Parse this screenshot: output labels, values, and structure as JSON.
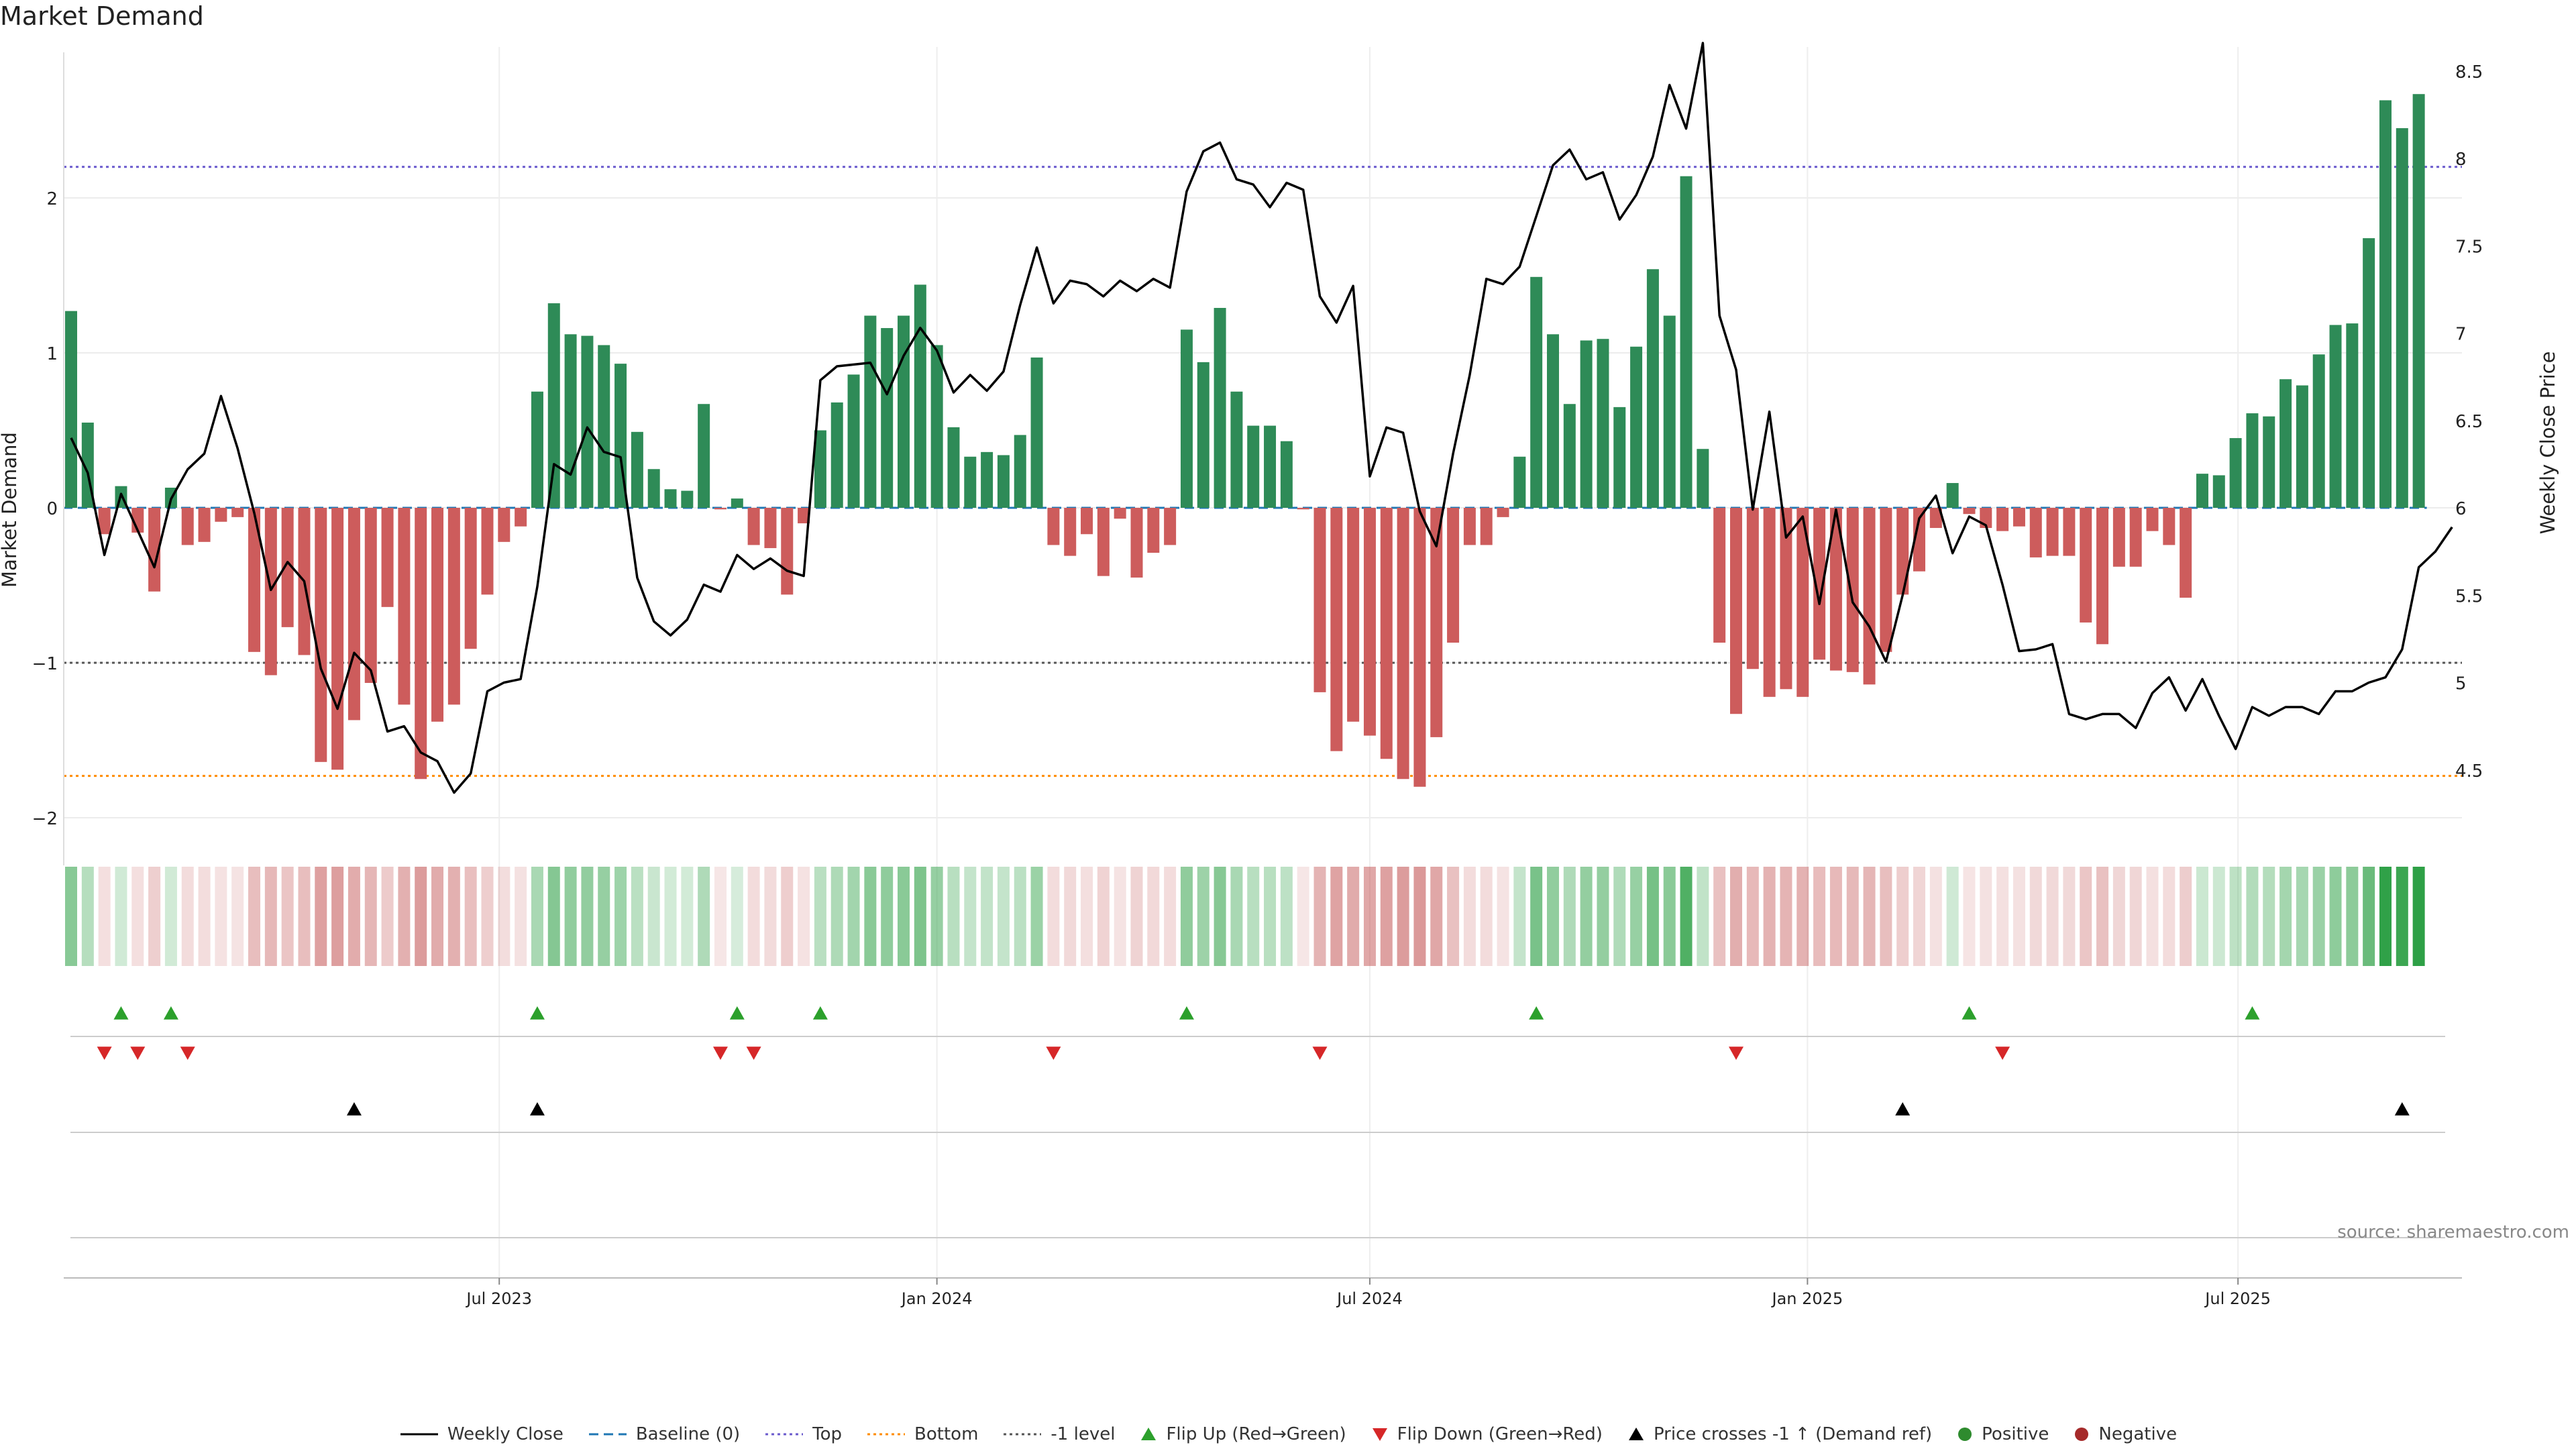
{
  "title": "Market Demand",
  "source": "source: sharemaestro.com",
  "colors": {
    "positive": "#2e8b57",
    "negative": "#cd5c5c",
    "price": "#000000",
    "baseline": "#1f77b4",
    "top": "#6a5acd",
    "bottom": "#ff8c00",
    "minus1": "#555555",
    "flip_up": "#2ca02c",
    "flip_down": "#d62728",
    "cross": "#000000",
    "dot_positive": "#2e8b2e",
    "dot_negative": "#a52a2a"
  },
  "legend": [
    {
      "label": "Weekly Close",
      "type": "line",
      "color": "#000000",
      "dash": ""
    },
    {
      "label": "Baseline (0)",
      "type": "line",
      "color": "#1f77b4",
      "dash": "14,8"
    },
    {
      "label": "Top",
      "type": "line",
      "color": "#6a5acd",
      "dash": "4,5"
    },
    {
      "label": "Bottom",
      "type": "line",
      "color": "#ff8c00",
      "dash": "4,5"
    },
    {
      "label": "-1 level",
      "type": "line",
      "color": "#555555",
      "dash": "4,5"
    },
    {
      "label": "Flip Up (Red→Green)",
      "type": "tri-up",
      "color": "#2ca02c"
    },
    {
      "label": "Flip Down (Green→Red)",
      "type": "tri-down",
      "color": "#d62728"
    },
    {
      "label": "Price crosses -1 ↑ (Demand ref)",
      "type": "tri-up",
      "color": "#000000"
    },
    {
      "label": "Positive",
      "type": "dot",
      "color": "#2e8b2e"
    },
    {
      "label": "Negative",
      "type": "dot",
      "color": "#a52a2a"
    }
  ],
  "chart_data": {
    "type": "bar",
    "frequency": "weekly",
    "x_start": "2023-01-02",
    "xlabel": "",
    "ylabel": "Market Demand",
    "y2label": "Weekly Close Price",
    "ylim": [
      -2.2,
      2.95
    ],
    "y2lim": [
      4.25,
      8.66
    ],
    "yticks": [
      -2,
      -1,
      0,
      1,
      2
    ],
    "yticklabels": [
      "−2",
      "−1",
      "0",
      "1",
      "2"
    ],
    "y2ticks": [
      4.5,
      5,
      5.5,
      6,
      6.5,
      7,
      7.5,
      8,
      8.5
    ],
    "y2ticklabels": [
      "4.5",
      "5",
      "5.5",
      "6",
      "6.5",
      "7",
      "7.5",
      "8",
      "8.5"
    ],
    "xticks": [
      "2023-07-01",
      "2024-01-01",
      "2024-07-01",
      "2025-01-01",
      "2025-07-01"
    ],
    "xticklabels": [
      "Jul 2023",
      "Jan 2024",
      "Jul 2024",
      "Jan 2025",
      "Jul 2025"
    ],
    "reference_lines": {
      "baseline": 0,
      "top": 2.2,
      "bottom": -1.73,
      "minus_one": -1
    },
    "grid": true,
    "legend_position": "bottom-center",
    "demand": [
      1.27,
      0.55,
      -0.17,
      0.14,
      -0.16,
      -0.54,
      0.13,
      -0.24,
      -0.22,
      -0.09,
      -0.06,
      -0.93,
      -1.08,
      -0.77,
      -0.95,
      -1.64,
      -1.69,
      -1.37,
      -1.13,
      -0.64,
      -1.27,
      -1.75,
      -1.38,
      -1.27,
      -0.91,
      -0.56,
      -0.22,
      -0.12,
      0.75,
      1.32,
      1.12,
      1.11,
      1.05,
      0.93,
      0.49,
      0.25,
      0.12,
      0.11,
      0.67,
      -0.01,
      0.06,
      -0.24,
      -0.26,
      -0.56,
      -0.1,
      0.5,
      0.68,
      0.86,
      1.24,
      1.16,
      1.24,
      1.44,
      1.05,
      0.52,
      0.33,
      0.36,
      0.34,
      0.47,
      0.97,
      -0.24,
      -0.31,
      -0.17,
      -0.44,
      -0.07,
      -0.45,
      -0.29,
      -0.24,
      1.15,
      0.94,
      1.29,
      0.75,
      0.53,
      0.53,
      0.43,
      -0.01,
      -1.19,
      -1.57,
      -1.38,
      -1.47,
      -1.62,
      -1.75,
      -1.8,
      -1.48,
      -0.87,
      -0.24,
      -0.24,
      -0.06,
      0.33,
      1.49,
      1.12,
      0.67,
      1.08,
      1.09,
      0.65,
      1.04,
      1.54,
      1.24,
      2.14,
      0.38,
      -0.87,
      -1.33,
      -1.04,
      -1.22,
      -1.17,
      -1.22,
      -0.98,
      -1.05,
      -1.06,
      -1.14,
      -0.93,
      -0.56,
      -0.41,
      -0.13,
      0.16,
      -0.04,
      -0.13,
      -0.15,
      -0.12,
      -0.32,
      -0.31,
      -0.31,
      -0.74,
      -0.88,
      -0.38,
      -0.38,
      -0.15,
      -0.24,
      -0.58,
      0.22,
      0.21,
      0.45,
      0.61,
      0.59,
      0.83,
      0.79,
      0.99,
      1.18,
      1.19,
      1.74,
      2.63,
      2.45,
      2.67
    ],
    "weekly_close": [
      6.4,
      6.2,
      5.73,
      6.08,
      5.87,
      5.66,
      6.05,
      6.22,
      6.31,
      6.64,
      6.34,
      5.97,
      5.53,
      5.69,
      5.58,
      5.08,
      4.85,
      5.17,
      5.07,
      4.72,
      4.75,
      4.6,
      4.55,
      4.37,
      4.48,
      4.95,
      5.0,
      5.02,
      5.55,
      6.25,
      6.19,
      6.46,
      6.32,
      6.29,
      5.6,
      5.35,
      5.27,
      5.36,
      5.56,
      5.52,
      5.73,
      5.65,
      5.71,
      5.64,
      5.61,
      6.73,
      6.81,
      6.82,
      6.83,
      6.65,
      6.87,
      7.03,
      6.9,
      6.66,
      6.76,
      6.67,
      6.78,
      7.16,
      7.49,
      7.17,
      7.3,
      7.28,
      7.21,
      7.3,
      7.24,
      7.31,
      7.26,
      7.81,
      8.04,
      8.09,
      7.88,
      7.85,
      7.72,
      7.86,
      7.82,
      7.21,
      7.06,
      7.27,
      6.18,
      6.46,
      6.43,
      5.98,
      5.78,
      6.31,
      6.76,
      7.31,
      7.28,
      7.38,
      7.67,
      7.96,
      8.05,
      7.88,
      7.92,
      7.65,
      7.79,
      8.01,
      8.42,
      8.17,
      8.66,
      7.1,
      6.79,
      5.99,
      6.55,
      5.83,
      5.95,
      5.45,
      5.99,
      5.46,
      5.32,
      5.12,
      5.5,
      5.94,
      6.07,
      5.74,
      5.95,
      5.9,
      5.56,
      5.18,
      5.19,
      5.22,
      4.82,
      4.79,
      4.82,
      4.82,
      4.74,
      4.94,
      5.03,
      4.84,
      5.02,
      4.81,
      4.62,
      4.86,
      4.81,
      4.86,
      4.86,
      4.82,
      4.95,
      4.95,
      5.0,
      5.03,
      5.19,
      5.66,
      5.75,
      5.89
    ]
  },
  "signals": {
    "flip_up_index": [
      3,
      6,
      28,
      40,
      45,
      67,
      88,
      114,
      131
    ],
    "flip_down_index": [
      2,
      4,
      7,
      39,
      41,
      59,
      75,
      100,
      116
    ],
    "price_cross_index": [
      17,
      28,
      110,
      140
    ]
  }
}
